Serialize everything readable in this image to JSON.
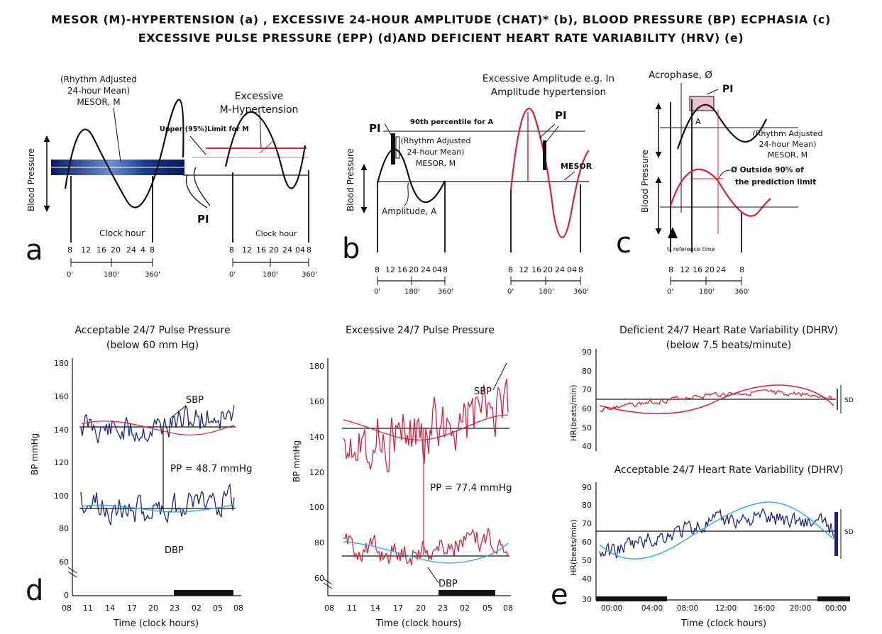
{
  "title": {
    "line1": "MESOR (M)-HYPERTENSION (a) , EXCESSIVE 24-HOUR AMPLITUDE (CHAT)* (b), BLOOD PRESSURE (BP) ECPHASIA (c)",
    "line2": "EXCESSIVE PULSE PRESSURE (EPP) (d)AND DEFICIENT HEART RATE VARIABILITY (HRV) (e)"
  },
  "colors": {
    "red": "#d8213b",
    "navy": "#1f2380",
    "blue": "#3aa7d9",
    "gray": "#9a9a9a",
    "pink": "#e8c4cc"
  },
  "panel_a": {
    "letter": "a",
    "mesor_label": [
      "(Rhythm Adjusted",
      "24-hour Mean)",
      "MESOR, M"
    ],
    "excessive_label": [
      "Excessive",
      "M-Hypertension"
    ],
    "upper_limit": "Upper (95%)Limit for M",
    "pi": "PI",
    "y_axis": "Blood Pressure",
    "clock_hour": "Clock hour",
    "hours_left": [
      "8",
      "12",
      "16",
      "20",
      "24",
      "4",
      "8"
    ],
    "hours_right": [
      "8",
      "12",
      "16",
      "20",
      "24",
      "04",
      "8"
    ],
    "degrees": [
      "0'",
      "180'",
      "360'"
    ]
  },
  "panel_b": {
    "letter": "b",
    "excessive_amp": [
      "Excessive Amplitude e.g. In",
      "Amplitude hypertension"
    ],
    "percentile": "90th percentile for A",
    "mesor_label": [
      "(Rhythm Adjusted",
      "24-hour Mean)",
      "MESOR, M"
    ],
    "pi_left": "PI",
    "pi_right": "PI",
    "mesor": "MESOR",
    "amplitude": "Amplitude, A",
    "y_axis": "Blood Pressure",
    "hours_left": [
      "8",
      "12",
      "16",
      "20",
      "24",
      "04",
      "8"
    ],
    "hours_right": [
      "8",
      "12",
      "16",
      "20",
      "24",
      "04",
      "8"
    ],
    "degrees": [
      "0'",
      "180'",
      "360'"
    ]
  },
  "panel_c": {
    "letter": "c",
    "acrophase": "Acrophase, Ø",
    "pi": "PI",
    "a_label": "A",
    "mesor_label": [
      "(Rhythm Adjusted",
      "24-hour Mean)",
      "MESOR, M"
    ],
    "outside": [
      "Ø Outside 90% of",
      "the prediction limit"
    ],
    "y_axis": "Blood Pressure",
    "ref_time": "t₀ reference time",
    "hours": [
      "8",
      "12",
      "16",
      "20",
      "24",
      "8"
    ],
    "degrees": [
      "0'",
      "180'",
      "360'"
    ]
  },
  "panel_d": {
    "letter": "d",
    "left_title": [
      "Acceptable 24/7 Pulse Pressure",
      "(below 60 mm Hg)"
    ],
    "right_title": "Excessive 24/7 Pulse Pressure",
    "y_axis": "BP mmHg",
    "left_yticks": [
      "180",
      "160",
      "140",
      "120",
      "100",
      "80",
      "60",
      "0"
    ],
    "right_yticks": [
      "180",
      "160",
      "140",
      "120",
      "100",
      "80",
      "60"
    ],
    "left_sbp": "SBP",
    "left_dbp": "DBP",
    "right_sbp": "SBP",
    "right_dbp": "DBP",
    "left_pp": "PP = 48.7 mmHg",
    "right_pp": "PP = 77.4 mmHg",
    "x_label": "Time (clock hours)",
    "left_xticks": [
      "08",
      "11",
      "14",
      "17",
      "20",
      "23",
      "02",
      "05",
      "08"
    ],
    "right_xticks": [
      "08",
      "11",
      "14",
      "17",
      "20",
      "23",
      "02",
      "05",
      "08"
    ]
  },
  "panel_e": {
    "letter": "e",
    "top_title": [
      "Deficient 24/7 Heart Rate Variability (DHRV)",
      "(below 7.5 beats/minute)"
    ],
    "bottom_title": "Acceptable 24/7 Heart Rate Variability (DHRV)",
    "y_axis": "HR(beats/min)",
    "top_yticks": [
      "90",
      "80",
      "70",
      "60",
      "50",
      "40"
    ],
    "bottom_yticks": [
      "90",
      "80",
      "70",
      "60",
      "50",
      "40",
      "30"
    ],
    "sd": "SD",
    "x_label": "Time (clock hours)",
    "xticks": [
      "00:00",
      "04:00",
      "08:00",
      "12:00",
      "16:00",
      "20:00",
      "00:00"
    ]
  }
}
